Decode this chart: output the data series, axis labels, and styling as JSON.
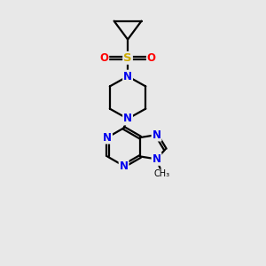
{
  "background_color": "#e8e8e8",
  "bond_color": "#000000",
  "N_color": "#0000ee",
  "S_color": "#ccaa00",
  "O_color": "#ff0000",
  "line_width": 1.6,
  "font_size_atom": 8.5,
  "figsize": [
    3.0,
    3.0
  ],
  "dpi": 100,
  "xlim": [
    0,
    10
  ],
  "ylim": [
    0,
    10
  ]
}
